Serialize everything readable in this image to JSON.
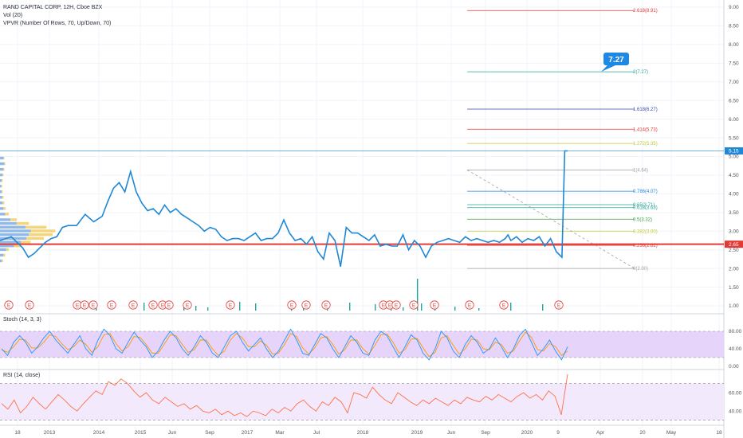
{
  "legend": {
    "title": "RAND CAPITAL CORP, 12H, Cboe BZX",
    "vol": "Vol (20)",
    "vpvr": "VPVR (Number Of Rows, 70, Up/Down, 70)"
  },
  "colors": {
    "price": "#1e88d6",
    "support": "#e53935",
    "stoch_k": "#2196f3",
    "stoch_d": "#ff9800",
    "rsi": "#ff7043",
    "band": "#e7d4fb",
    "vol_up": "#26a69a",
    "earnings": "#e53935",
    "vpvr_up": "#90b8e8",
    "vpvr_down": "#f6d47a"
  },
  "price_axis_labels": [
    "9.00",
    "8.50",
    "8.00",
    "7.50",
    "7.00",
    "6.50",
    "6.00",
    "5.50",
    "5.00",
    "4.50",
    "4.00",
    "3.50",
    "3.00",
    "2.50",
    "2.00",
    "1.50",
    "1.00"
  ],
  "price_tags": {
    "last": "5.15",
    "support": "2.65"
  },
  "stoch_axis_labels": [
    "80.00",
    "40.00",
    "0.00"
  ],
  "rsi_axis_labels": [
    "60.00",
    "40.00"
  ],
  "callout": {
    "label": "7.27"
  },
  "panes": {
    "stoch": "Stoch (14, 3, 3)",
    "rsi": "RSI (14, close)"
  },
  "time_axis_labels": [
    "18",
    "2013",
    "2014",
    "2015",
    "Jun",
    "Sep",
    "2017",
    "Mar",
    "Jul",
    "2018",
    "2019",
    "Jun",
    "Sep",
    "2020",
    "9",
    "Apr",
    "20",
    "May",
    "18"
  ],
  "earnings_label": "E",
  "chart_data": {
    "type": "line",
    "title": "RAND CAPITAL CORP, 12H, Cboe BZX",
    "ylim": [
      0.8,
      9.2
    ],
    "grid": true,
    "series": [
      {
        "x_index": [
          0,
          4,
          8,
          10,
          12,
          14,
          16,
          18,
          20,
          22,
          24,
          27,
          30,
          33,
          36,
          38,
          40,
          42,
          44,
          46,
          48,
          50,
          52,
          54,
          56,
          58,
          60,
          62,
          64,
          66,
          68,
          70,
          72,
          74,
          76,
          78,
          80,
          82,
          84,
          86,
          88,
          90,
          92,
          94,
          96,
          98,
          100,
          102,
          104,
          106,
          108,
          110,
          112,
          114,
          116,
          118,
          120,
          122,
          124,
          126,
          128,
          130,
          132,
          134,
          136,
          138,
          140,
          142,
          144,
          146,
          148,
          150,
          152,
          154,
          156,
          158,
          160,
          162,
          164,
          166,
          168,
          170,
          172,
          174,
          176,
          178,
          179,
          180,
          182,
          184,
          186,
          188,
          190,
          192,
          194,
          196,
          198,
          199,
          200
        ],
        "values": [
          2.75,
          2.85,
          2.55,
          2.3,
          2.4,
          2.55,
          2.7,
          2.8,
          2.85,
          3.1,
          3.15,
          3.15,
          3.45,
          3.25,
          3.4,
          3.8,
          4.15,
          4.3,
          4.05,
          4.6,
          4.05,
          3.75,
          3.55,
          3.6,
          3.45,
          3.7,
          3.5,
          3.6,
          3.45,
          3.35,
          3.25,
          3.15,
          3.0,
          3.1,
          3.05,
          2.85,
          2.75,
          2.8,
          2.8,
          2.75,
          2.85,
          2.95,
          2.75,
          2.8,
          2.8,
          2.95,
          3.3,
          2.95,
          2.75,
          2.8,
          2.65,
          2.85,
          2.45,
          2.25,
          2.95,
          2.75,
          2.05,
          3.1,
          2.95,
          2.95,
          2.85,
          2.75,
          2.9,
          2.6,
          2.65,
          2.6,
          2.6,
          2.9,
          2.5,
          2.75,
          2.6,
          2.3,
          2.6,
          2.7,
          2.75,
          2.8,
          2.75,
          2.7,
          2.85,
          2.75,
          2.8,
          2.75,
          2.7,
          2.75,
          2.7,
          2.8,
          2.9,
          2.75,
          2.85,
          2.7,
          2.8,
          2.75,
          2.85,
          2.6,
          2.8,
          2.45,
          2.3,
          5.15,
          5.15
        ]
      }
    ],
    "fib_levels": [
      {
        "label": "0(2.00)",
        "value": 2.0,
        "color": "#9e9e9e"
      },
      {
        "label": "0.236(2.62)",
        "value": 2.62,
        "color": "#e53935"
      },
      {
        "label": "0.382(3.00)",
        "value": 3.0,
        "color": "#c0ca33"
      },
      {
        "label": "0.5(3.32)",
        "value": 3.32,
        "color": "#43a047"
      },
      {
        "label": "0.618(3.63)",
        "value": 3.63,
        "color": "#26a69a"
      },
      {
        "label": "0.65(3.71)",
        "value": 3.71,
        "color": "#26a69a"
      },
      {
        "label": "0.786(4.07)",
        "value": 4.07,
        "color": "#1e88e5"
      },
      {
        "label": "1(4.64)",
        "value": 4.64,
        "color": "#9e9e9e"
      },
      {
        "label": "1.272(5.35)",
        "value": 5.35,
        "color": "#c0ca33"
      },
      {
        "label": "1.414(5.73)",
        "value": 5.73,
        "color": "#e53935"
      },
      {
        "label": "1.618(6.27)",
        "value": 6.27,
        "color": "#3949ab"
      },
      {
        "label": "2(7.27)",
        "value": 7.27,
        "color": "#26a69a"
      },
      {
        "label": "2.618(8.91)",
        "value": 8.91,
        "color": "#e53935"
      }
    ],
    "support_level": 2.65,
    "last_price": 5.15,
    "stoch": {
      "ylim": [
        0,
        100
      ],
      "bands": [
        20,
        80
      ],
      "k": [
        40,
        25,
        55,
        70,
        55,
        30,
        45,
        65,
        80,
        60,
        45,
        30,
        50,
        70,
        40,
        25,
        60,
        85,
        70,
        40,
        30,
        55,
        78,
        60,
        45,
        20,
        35,
        60,
        80,
        65,
        40,
        25,
        45,
        70,
        55,
        30,
        20,
        45,
        70,
        80,
        55,
        35,
        50,
        65,
        40,
        20,
        35,
        60,
        85,
        60,
        30,
        25,
        50,
        75,
        65,
        40,
        20,
        45,
        70,
        55,
        30,
        25,
        60,
        80,
        70,
        45,
        20,
        45,
        72,
        60,
        30,
        15,
        40,
        80,
        65,
        35,
        20,
        50,
        70,
        55,
        30,
        40,
        65,
        45,
        20,
        40,
        70,
        85,
        55,
        25,
        40,
        60,
        35,
        15,
        45
      ],
      "d": [
        38,
        32,
        45,
        62,
        60,
        42,
        42,
        55,
        72,
        68,
        52,
        38,
        45,
        60,
        50,
        32,
        45,
        72,
        75,
        52,
        35,
        45,
        68,
        66,
        50,
        30,
        30,
        50,
        72,
        70,
        50,
        32,
        38,
        60,
        60,
        40,
        25,
        35,
        60,
        75,
        65,
        45,
        45,
        58,
        48,
        28,
        30,
        50,
        75,
        68,
        42,
        28,
        42,
        65,
        68,
        50,
        28,
        38,
        60,
        60,
        40,
        28,
        48,
        72,
        74,
        55,
        30,
        38,
        62,
        64,
        42,
        22,
        32,
        65,
        70,
        48,
        28,
        40,
        62,
        60,
        40,
        38,
        55,
        50,
        30,
        35,
        58,
        78,
        66,
        38,
        35,
        52,
        45,
        25,
        35
      ]
    },
    "rsi": {
      "ylim": [
        28,
        80
      ],
      "bands": [
        30,
        70
      ],
      "values": [
        48,
        42,
        52,
        38,
        45,
        55,
        48,
        42,
        50,
        58,
        52,
        45,
        40,
        48,
        55,
        62,
        58,
        72,
        68,
        75,
        70,
        62,
        55,
        60,
        52,
        48,
        55,
        50,
        45,
        48,
        42,
        46,
        40,
        38,
        42,
        36,
        40,
        35,
        38,
        34,
        40,
        38,
        35,
        42,
        38,
        44,
        40,
        48,
        52,
        45,
        40,
        50,
        46,
        55,
        50,
        38,
        60,
        58,
        54,
        66,
        58,
        52,
        48,
        60,
        55,
        50,
        46,
        52,
        48,
        54,
        50,
        46,
        52,
        48,
        55,
        52,
        50,
        56,
        52,
        58,
        54,
        50,
        56,
        60,
        54,
        58,
        52,
        62,
        56,
        36,
        80
      ]
    },
    "time_axis_labels": [
      "18",
      "2013",
      "2014",
      "2015",
      "Jun",
      "Sep",
      "2017",
      "Mar",
      "Jul",
      "2018",
      "2019",
      "Jun",
      "Sep",
      "2020",
      "9",
      "Apr",
      "20",
      "May",
      "18"
    ]
  }
}
